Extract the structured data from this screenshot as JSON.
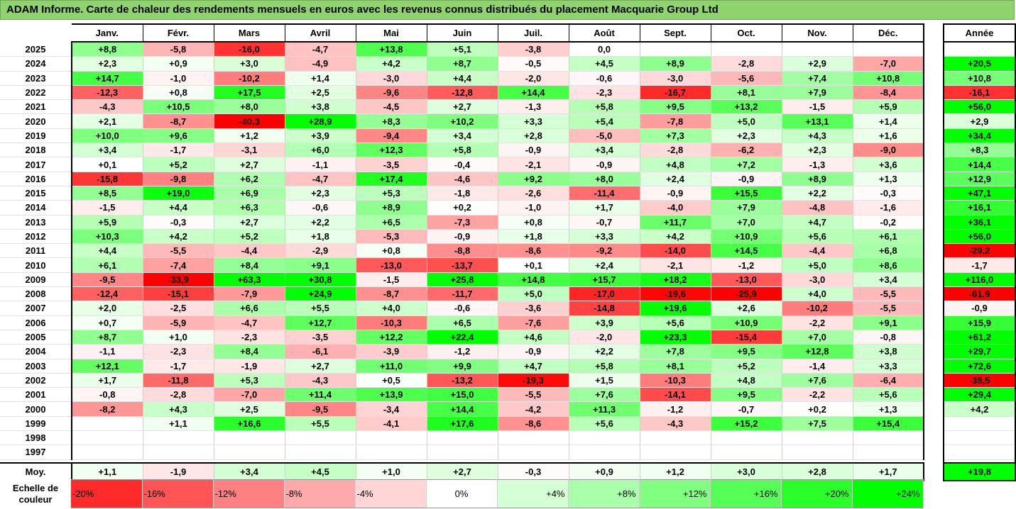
{
  "title": "ADAM Informe. Carte de chaleur des rendements mensuels en euros avec les revenus connus distribués du placement Macquarie Group Ltd",
  "chart_data": {
    "type": "heatmap",
    "title": "ADAM Informe. Carte de chaleur des rendements mensuels en euros avec les revenus connus distribués du placement Macquarie Group Ltd",
    "months": [
      "Janv.",
      "Févr.",
      "Mars",
      "Avril",
      "Mai",
      "Juin",
      "Juil.",
      "Août",
      "Sept.",
      "Oct.",
      "Nov.",
      "Déc."
    ],
    "annual_header": "Année",
    "rows": [
      {
        "year": "2025",
        "values": [
          "+8,8",
          "-5,8",
          "-16,0",
          "-4,7",
          "+13,8",
          "+5,1",
          "-3,8",
          "0,0",
          "",
          "",
          "",
          ""
        ],
        "annual": ""
      },
      {
        "year": "2024",
        "values": [
          "+2,3",
          "+0,9",
          "+3,0",
          "-4,9",
          "+4,2",
          "+8,7",
          "-0,5",
          "+4,5",
          "+8,9",
          "-2,8",
          "+2,9",
          "-7,0"
        ],
        "annual": "+20,5"
      },
      {
        "year": "2023",
        "values": [
          "+14,7",
          "-1,0",
          "-10,2",
          "+1,4",
          "-3,0",
          "+4,4",
          "-2,0",
          "-0,6",
          "-3,0",
          "-5,6",
          "+7,4",
          "+10,8"
        ],
        "annual": "+10,8"
      },
      {
        "year": "2022",
        "values": [
          "-12,3",
          "+0,8",
          "+17,5",
          "+2,5",
          "-9,6",
          "-12,8",
          "+14,4",
          "-2,3",
          "-16,7",
          "+8,1",
          "+7,9",
          "-8,4"
        ],
        "annual": "-16,1"
      },
      {
        "year": "2021",
        "values": [
          "-4,3",
          "+10,5",
          "+8,0",
          "+3,8",
          "-4,5",
          "+2,7",
          "-1,3",
          "+5,8",
          "+9,5",
          "+13,2",
          "-1,5",
          "+5,9"
        ],
        "annual": "+56,0"
      },
      {
        "year": "2020",
        "values": [
          "+2,1",
          "-8,7",
          "-40,3",
          "+28,9",
          "+8,3",
          "+10,2",
          "+3,3",
          "+5,4",
          "-7,8",
          "+5,0",
          "+13,1",
          "+1,4"
        ],
        "annual": "+2,9"
      },
      {
        "year": "2019",
        "values": [
          "+10,0",
          "+9,6",
          "+1,2",
          "+3,9",
          "-9,4",
          "+3,4",
          "+2,8",
          "-5,0",
          "+7,3",
          "+2,3",
          "+4,3",
          "+1,6"
        ],
        "annual": "+34,4"
      },
      {
        "year": "2018",
        "values": [
          "+3,4",
          "-1,7",
          "-3,1",
          "+6,0",
          "+12,3",
          "+5,8",
          "-0,9",
          "+3,4",
          "-2,8",
          "-6,2",
          "+2,3",
          "-9,0"
        ],
        "annual": "+8,3"
      },
      {
        "year": "2017",
        "values": [
          "+0,1",
          "+5,2",
          "+2,7",
          "-1,1",
          "-3,5",
          "-0,4",
          "-2,1",
          "-0,9",
          "+4,8",
          "+7,2",
          "-1,3",
          "+3,6"
        ],
        "annual": "+14,4"
      },
      {
        "year": "2016",
        "values": [
          "-15,8",
          "-9,8",
          "+6,2",
          "-4,7",
          "+17,4",
          "-4,6",
          "+9,2",
          "+8,0",
          "+2,4",
          "-0,9",
          "+8,9",
          "+1,3"
        ],
        "annual": "+12,9"
      },
      {
        "year": "2015",
        "values": [
          "+8,5",
          "+19,0",
          "+6,9",
          "+2,3",
          "+5,3",
          "-1,8",
          "-2,6",
          "-11,4",
          "-0,9",
          "+15,5",
          "+2,2",
          "-0,3"
        ],
        "annual": "+47,1"
      },
      {
        "year": "2014",
        "values": [
          "-1,5",
          "+4,4",
          "+6,3",
          "-0,6",
          "+8,9",
          "+0,2",
          "-1,0",
          "+1,7",
          "-4,0",
          "+7,9",
          "-4,8",
          "-1,6"
        ],
        "annual": "+16,1"
      },
      {
        "year": "2013",
        "values": [
          "+5,9",
          "-0,3",
          "+2,7",
          "+2,2",
          "+6,5",
          "-7,3",
          "+0,8",
          "-0,7",
          "+11,7",
          "+7,0",
          "+4,7",
          "-0,2"
        ],
        "annual": "+36,1"
      },
      {
        "year": "2012",
        "values": [
          "+10,3",
          "+4,2",
          "+5,2",
          "+1,8",
          "-5,3",
          "-0,9",
          "+1,8",
          "+3,3",
          "+4,2",
          "+10,9",
          "+5,6",
          "+6,1"
        ],
        "annual": "+56,0"
      },
      {
        "year": "2011",
        "values": [
          "+4,4",
          "-5,5",
          "-4,4",
          "-2,9",
          "+0,8",
          "-8,8",
          "-8,6",
          "-9,2",
          "-14,0",
          "+14,5",
          "-4,4",
          "+6,8"
        ],
        "annual": "-29,2"
      },
      {
        "year": "2010",
        "values": [
          "+6,1",
          "-7,4",
          "+8,4",
          "+9,1",
          "-13,0",
          "-13,7",
          "+0,1",
          "+2,4",
          "-2,1",
          "-1,2",
          "+5,0",
          "+8,6"
        ],
        "annual": "-1,7"
      },
      {
        "year": "2009",
        "values": [
          "-9,5",
          "-33,9",
          "+63,3",
          "+30,8",
          "-1,5",
          "+25,8",
          "+14,8",
          "+15,7",
          "+18,2",
          "-13,0",
          "-3,0",
          "+3,4"
        ],
        "annual": "+116,0"
      },
      {
        "year": "2008",
        "values": [
          "-12,4",
          "-15,1",
          "-7,9",
          "+24,9",
          "-8,7",
          "-11,7",
          "+5,0",
          "-17,0",
          "-19,6",
          "-25,9",
          "+4,0",
          "-5,5"
        ],
        "annual": "-61,9"
      },
      {
        "year": "2007",
        "values": [
          "+2,0",
          "-2,5",
          "+6,6",
          "+5,5",
          "+4,0",
          "-0,6",
          "-3,6",
          "-14,8",
          "+19,6",
          "+2,6",
          "-10,2",
          "-5,5"
        ],
        "annual": "-0,9"
      },
      {
        "year": "2006",
        "values": [
          "+0,7",
          "-5,9",
          "-4,7",
          "+12,7",
          "-10,3",
          "+6,5",
          "-7,6",
          "+3,9",
          "+5,6",
          "+10,9",
          "-2,2",
          "+9,1"
        ],
        "annual": "+15,9"
      },
      {
        "year": "2005",
        "values": [
          "+8,7",
          "+1,0",
          "-2,3",
          "-3,5",
          "+12,2",
          "+22,4",
          "+4,6",
          "-2,0",
          "+23,3",
          "-15,4",
          "+7,0",
          "-0,8"
        ],
        "annual": "+61,2"
      },
      {
        "year": "2004",
        "values": [
          "-1,1",
          "-2,3",
          "+8,4",
          "-6,1",
          "-3,9",
          "-1,2",
          "-0,9",
          "+2,2",
          "+7,8",
          "+9,5",
          "+12,8",
          "+3,8"
        ],
        "annual": "+29,7"
      },
      {
        "year": "2003",
        "values": [
          "+12,1",
          "-1,7",
          "-1,9",
          "+2,7",
          "+11,0",
          "+9,9",
          "+4,7",
          "+5,8",
          "+8,1",
          "+5,2",
          "-1,4",
          "+3,3"
        ],
        "annual": "+72,6"
      },
      {
        "year": "2002",
        "values": [
          "+1,7",
          "-11,8",
          "+5,3",
          "-4,3",
          "+0,5",
          "-13,2",
          "-19,3",
          "+1,5",
          "-10,3",
          "+4,8",
          "+7,6",
          "-6,4"
        ],
        "annual": "-38,5"
      },
      {
        "year": "2001",
        "values": [
          "-0,8",
          "-2,8",
          "-7,0",
          "+11,4",
          "+13,9",
          "+15,0",
          "-5,5",
          "+7,6",
          "-14,1",
          "+9,5",
          "-2,2",
          "+5,6"
        ],
        "annual": "+29,4"
      },
      {
        "year": "2000",
        "values": [
          "-8,2",
          "+4,3",
          "+2,5",
          "-9,5",
          "-3,4",
          "+14,4",
          "-4,2",
          "+11,3",
          "-1,2",
          "-0,7",
          "+0,2",
          "+1,3"
        ],
        "annual": "+4,2"
      },
      {
        "year": "1999",
        "values": [
          "",
          "+1,1",
          "+16,6",
          "+5,5",
          "-4,1",
          "+17,6",
          "-8,6",
          "+5,6",
          "-4,3",
          "+15,2",
          "+7,5",
          "+15,4"
        ],
        "annual": ""
      },
      {
        "year": "1998",
        "values": [
          "",
          "",
          "",
          "",
          "",
          "",
          "",
          "",
          "",
          "",
          "",
          ""
        ],
        "annual": ""
      },
      {
        "year": "1997",
        "values": [
          "",
          "",
          "",
          "",
          "",
          "",
          "",
          "",
          "",
          "",
          "",
          ""
        ],
        "annual": ""
      }
    ],
    "average": {
      "label": "Moy.",
      "values": [
        "+1,1",
        "-1,9",
        "+3,4",
        "+4,5",
        "+1,0",
        "+2,7",
        "-0,3",
        "+0,9",
        "+1,2",
        "+3,0",
        "+2,8",
        "+1,7"
      ],
      "annual": "+19,8"
    },
    "color_scale": {
      "label": "Echelle de couleur",
      "stops": [
        "-20%",
        "-16%",
        "-12%",
        "-8%",
        "-4%",
        "0%",
        "+4%",
        "+8%",
        "+12%",
        "+16%",
        "+20%",
        "+24%"
      ],
      "stop_values": [
        -20,
        -16,
        -12,
        -8,
        -4,
        0,
        4,
        8,
        12,
        16,
        20,
        24
      ],
      "colors": {
        "negative_max": "#ff0000",
        "neutral": "#ffffff",
        "positive_max": "#00ff00"
      }
    }
  }
}
